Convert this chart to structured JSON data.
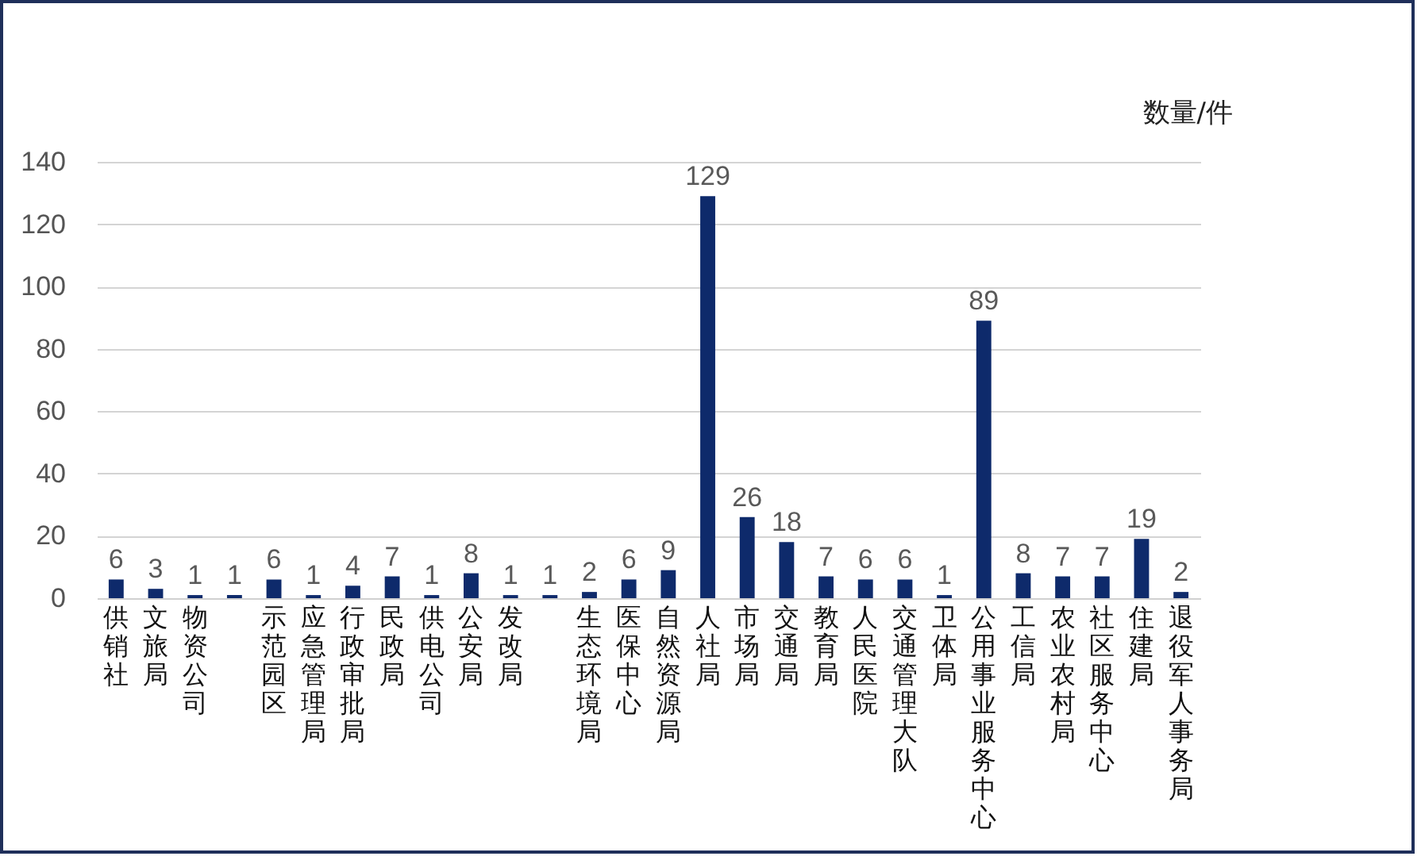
{
  "chart_data": {
    "type": "bar",
    "ylabel": "数量/件",
    "categories": [
      "供销社",
      "文旅局",
      "物资公司",
      null,
      "示范园区",
      "应急管理局",
      "行政审批局",
      "民政局",
      "供电公司",
      "公安局",
      "发改局",
      null,
      "生态环境局",
      "医保中心",
      "自然资源局",
      "人社局",
      "市场局",
      "交通局",
      "教育局",
      "人民医院",
      "交通管理大队",
      "卫体局",
      "公用事业服务中心",
      "工信局",
      "农业农村局",
      "社区服务中心",
      "住建局",
      "退役军人事务局"
    ],
    "values": [
      6,
      3,
      1,
      1,
      6,
      1,
      4,
      7,
      1,
      8,
      1,
      1,
      2,
      6,
      9,
      129,
      26,
      18,
      7,
      6,
      6,
      1,
      89,
      8,
      7,
      7,
      19,
      2
    ],
    "color": "#0e2a6b",
    "ylim": [
      0,
      140
    ],
    "yticks": [
      0,
      20,
      40,
      60,
      80,
      100,
      120,
      140
    ],
    "grid": "y",
    "data_labels": true
  }
}
